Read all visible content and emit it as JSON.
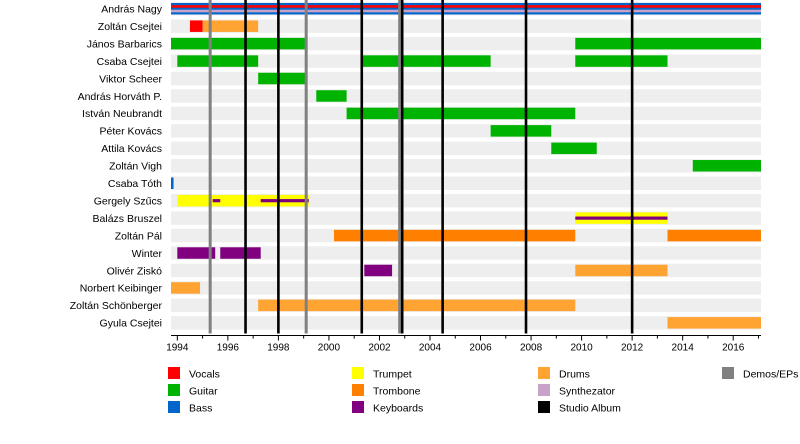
{
  "chart_data": {
    "type": "timeline",
    "title": "",
    "xlabel": "",
    "ylabel": "",
    "x_range": [
      1993.75,
      2017.1
    ],
    "x_ticks": [
      "1994",
      "1996",
      "1998",
      "2000",
      "2002",
      "2004",
      "2006",
      "2008",
      "2010",
      "2012",
      "2014",
      "2016"
    ],
    "grid": "alternating row bands",
    "members": [
      "András Nagy",
      "Zoltán Csejtei",
      "János Barbarics",
      "Csaba Csejtei",
      "Viktor Scheer",
      "András Horváth P.",
      "István Neubrandt",
      "Péter Kovács",
      "Attila Kovács",
      "Zoltán Vigh",
      "Csaba Tóth",
      "Gergely Szűcs",
      "Balázs Bruszel",
      "Zoltán Pál",
      "Winter",
      "Olivér Ziskó",
      "Norbert Keibinger",
      "Zoltán Schönberger",
      "Gyula Csejtei"
    ],
    "roles": {
      "Vocals": "#ff0000",
      "Guitar": "#00b300",
      "Bass": "#0066cc",
      "Trumpet": "#ffff00",
      "Trombone": "#ff8000",
      "Keyboards": "#800080",
      "Drums": "#ffa333",
      "Synthezator": "#c8a2c8",
      "Studio Album": "#000000",
      "Demos/EPs": "#808080"
    },
    "legend": [
      [
        "Vocals",
        "Guitar",
        "Bass"
      ],
      [
        "Trumpet",
        "Trombone",
        "Keyboards"
      ],
      [
        "Drums",
        "Synthezator",
        "Studio Album"
      ],
      [
        "Demos/EPs"
      ]
    ],
    "legend_position": "bottom",
    "periods": [
      {
        "member": 0,
        "role": "Bass",
        "start": 1993.75,
        "end": 2017.1
      },
      {
        "member": 0,
        "role": "Vocals",
        "start": 1993.75,
        "end": 2017.1,
        "stripe": "thin"
      },
      {
        "member": 0,
        "role": "Synthezator",
        "start": 1993.75,
        "end": 2017.1,
        "stripe": "thin"
      },
      {
        "member": 1,
        "role": "Vocals",
        "start": 1994.5,
        "end": 1995.0
      },
      {
        "member": 1,
        "role": "Drums",
        "start": 1995.0,
        "end": 1997.2
      },
      {
        "member": 2,
        "role": "Guitar",
        "start": 1993.75,
        "end": 1999.1
      },
      {
        "member": 2,
        "role": "Guitar",
        "start": 2009.75,
        "end": 2017.1
      },
      {
        "member": 3,
        "role": "Guitar",
        "start": 1994.0,
        "end": 1997.2
      },
      {
        "member": 3,
        "role": "Guitar",
        "start": 2001.3,
        "end": 2006.4
      },
      {
        "member": 3,
        "role": "Guitar",
        "start": 2009.75,
        "end": 2013.4
      },
      {
        "member": 4,
        "role": "Guitar",
        "start": 1997.2,
        "end": 1999.1
      },
      {
        "member": 5,
        "role": "Guitar",
        "start": 1999.5,
        "end": 2000.7
      },
      {
        "member": 6,
        "role": "Guitar",
        "start": 2000.7,
        "end": 2009.75
      },
      {
        "member": 7,
        "role": "Guitar",
        "start": 2006.4,
        "end": 2008.8
      },
      {
        "member": 8,
        "role": "Guitar",
        "start": 2008.8,
        "end": 2010.6
      },
      {
        "member": 9,
        "role": "Guitar",
        "start": 2014.4,
        "end": 2017.1
      },
      {
        "member": 10,
        "role": "Bass",
        "start": 1993.75,
        "end": 1993.85
      },
      {
        "member": 11,
        "role": "Trumpet",
        "start": 1994.0,
        "end": 1999.2
      },
      {
        "member": 11,
        "role": "Keyboards",
        "start": 1995.4,
        "end": 1995.7,
        "stripe": "thin"
      },
      {
        "member": 11,
        "role": "Keyboards",
        "start": 1997.3,
        "end": 1999.2,
        "stripe": "thin"
      },
      {
        "member": 12,
        "role": "Trumpet",
        "start": 2009.75,
        "end": 2013.4
      },
      {
        "member": 12,
        "role": "Keyboards",
        "start": 2009.75,
        "end": 2013.4,
        "stripe": "thin"
      },
      {
        "member": 13,
        "role": "Trombone",
        "start": 2000.2,
        "end": 2009.75
      },
      {
        "member": 13,
        "role": "Trombone",
        "start": 2013.4,
        "end": 2017.1
      },
      {
        "member": 14,
        "role": "Keyboards",
        "start": 1994.0,
        "end": 1995.5
      },
      {
        "member": 14,
        "role": "Keyboards",
        "start": 1995.7,
        "end": 1997.3
      },
      {
        "member": 15,
        "role": "Keyboards",
        "start": 2001.4,
        "end": 2002.5
      },
      {
        "member": 15,
        "role": "Drums",
        "start": 2009.75,
        "end": 2013.4
      },
      {
        "member": 16,
        "role": "Drums",
        "start": 1993.75,
        "end": 1994.9
      },
      {
        "member": 17,
        "role": "Drums",
        "start": 1997.2,
        "end": 2009.75
      },
      {
        "member": 18,
        "role": "Drums",
        "start": 2013.4,
        "end": 2017.1
      }
    ],
    "studio_albums": [
      1996.7,
      1998.0,
      2001.3,
      2002.9,
      2004.5,
      2007.8,
      2012.0
    ],
    "demos_eps": [
      1995.3,
      1999.1,
      2002.8
    ]
  }
}
